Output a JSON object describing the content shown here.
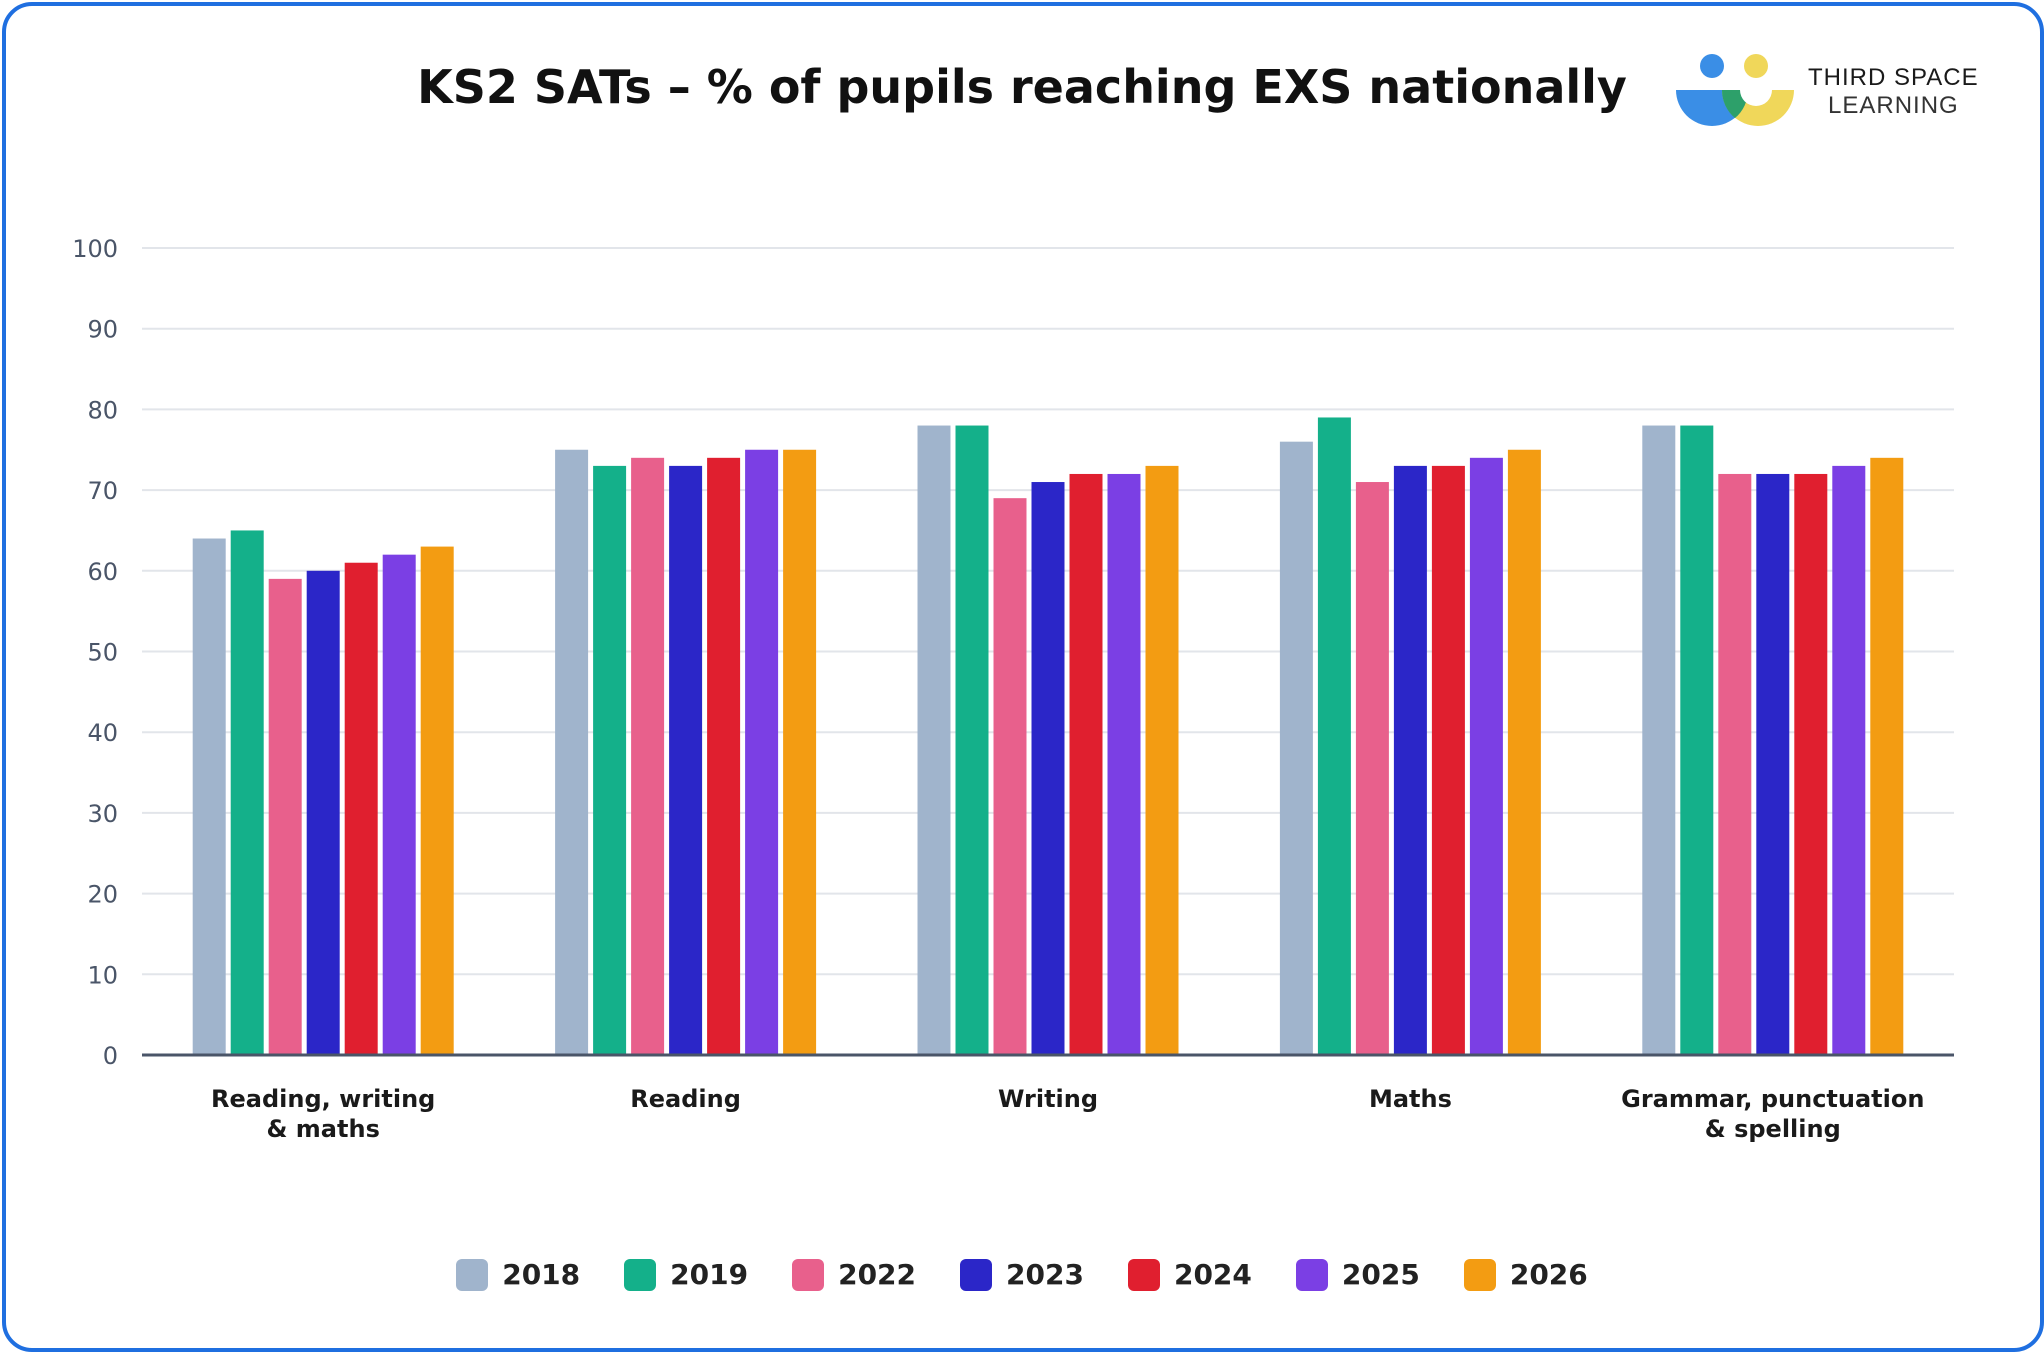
{
  "brand": {
    "line1": "THIRD SPACE",
    "line2": "LEARNING"
  },
  "chart_data": {
    "type": "bar",
    "title": "KS2 SATs – % of pupils reaching EXS nationally",
    "xlabel": "",
    "ylabel": "",
    "ylim": [
      0,
      100
    ],
    "yticks": [
      0,
      10,
      20,
      30,
      40,
      50,
      60,
      70,
      80,
      90,
      100
    ],
    "grid": true,
    "legend_position": "bottom",
    "categories": [
      [
        "Reading, writing",
        "& maths"
      ],
      [
        "Reading"
      ],
      [
        "Writing"
      ],
      [
        "Maths"
      ],
      [
        "Grammar, punctuation",
        "& spelling"
      ]
    ],
    "series": [
      {
        "name": "2018",
        "color": "#a0b4cc",
        "values": [
          64,
          75,
          78,
          76,
          78
        ]
      },
      {
        "name": "2019",
        "color": "#14b08a",
        "values": [
          65,
          73,
          78,
          79,
          78
        ]
      },
      {
        "name": "2022",
        "color": "#e8608c",
        "values": [
          59,
          74,
          69,
          71,
          72
        ]
      },
      {
        "name": "2023",
        "color": "#2b26c8",
        "values": [
          60,
          73,
          71,
          73,
          72
        ]
      },
      {
        "name": "2024",
        "color": "#e01f2f",
        "values": [
          61,
          74,
          72,
          73,
          72
        ]
      },
      {
        "name": "2025",
        "color": "#7b3fe4",
        "values": [
          62,
          75,
          72,
          74,
          73
        ]
      },
      {
        "name": "2026",
        "color": "#f39c12",
        "values": [
          63,
          75,
          73,
          75,
          74
        ]
      }
    ]
  }
}
